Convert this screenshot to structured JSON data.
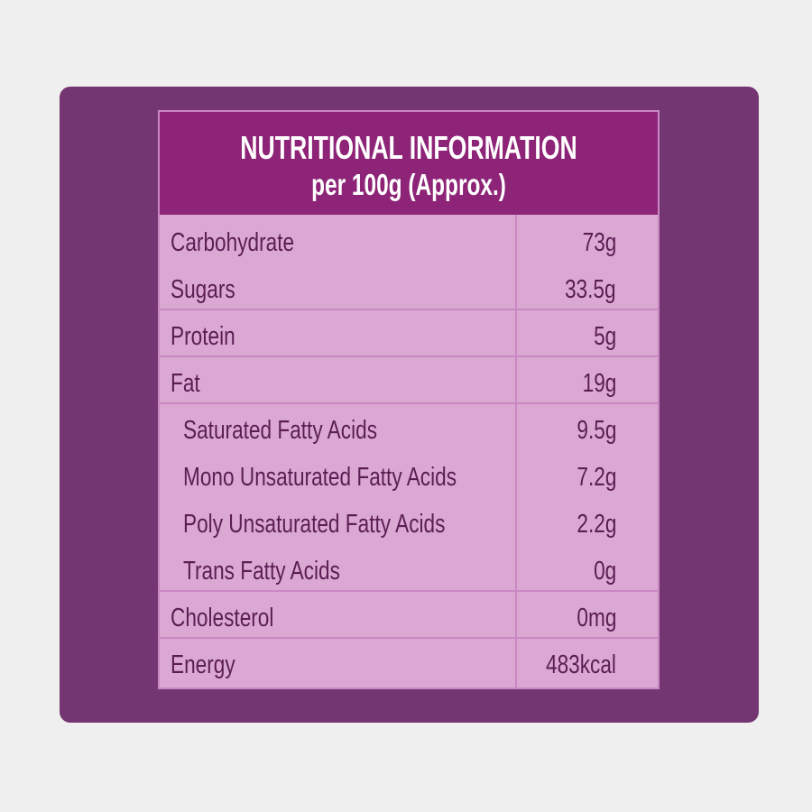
{
  "header": {
    "title": "NUTRITIONAL INFORMATION",
    "subtitle": "per 100g (Approx.)"
  },
  "rows": [
    {
      "label": "Carbohydrate",
      "value": "73g"
    },
    {
      "label": "Sugars",
      "value": "33.5g"
    },
    {
      "label": "Protein",
      "value": "5g"
    },
    {
      "label": "Fat",
      "value": "19g"
    },
    {
      "label": "Saturated Fatty Acids",
      "value": "9.5g"
    },
    {
      "label": "Mono Unsaturated Fatty Acids",
      "value": "7.2g"
    },
    {
      "label": "Poly Unsaturated Fatty Acids",
      "value": "2.2g"
    },
    {
      "label": "Trans Fatty Acids",
      "value": "0g"
    },
    {
      "label": "Cholesterol",
      "value": "0mg"
    },
    {
      "label": "Energy",
      "value": "483kcal"
    }
  ],
  "colors": {
    "background": "#efefef",
    "panel": "#743672",
    "header": "#8e2478",
    "table": "#dba8d3",
    "text": "#5a1e52",
    "rule": "#c988c2"
  }
}
